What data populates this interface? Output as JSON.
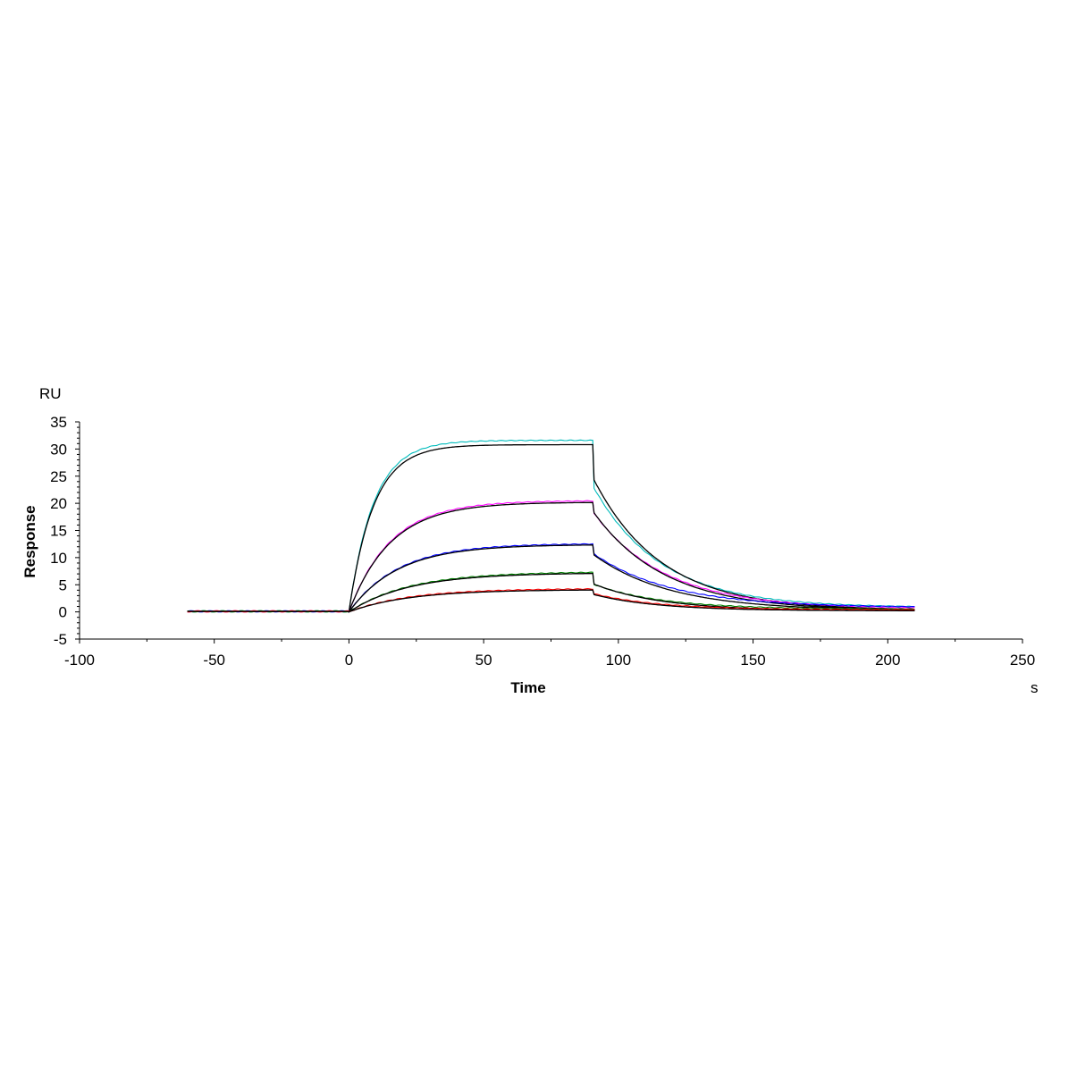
{
  "chart_data": {
    "type": "line",
    "title": "",
    "xlabel": "Time",
    "ylabel": "Response",
    "x_unit": "s",
    "y_unit": "RU",
    "xlim": [
      -100,
      250
    ],
    "ylim": [
      -5,
      35
    ],
    "x_ticks": [
      "-100",
      "-50",
      "0",
      "50",
      "100",
      "150",
      "200",
      "250"
    ],
    "y_ticks": [
      "35",
      "30",
      "25",
      "20",
      "15",
      "10",
      "5",
      "0",
      "-5"
    ],
    "x_tick_values": [
      -100,
      -50,
      0,
      50,
      100,
      150,
      200,
      250
    ],
    "y_tick_values": [
      35,
      30,
      25,
      20,
      15,
      10,
      5,
      0,
      -5
    ],
    "grid": false,
    "legend": "none",
    "association_start": 0,
    "dissociation_start": 90,
    "x_range_data": [
      -60,
      210
    ],
    "series": [
      {
        "color": "#00bcbc",
        "kind": "measured",
        "plateau": 31.6,
        "association_rate": 0.11,
        "dissociation_rate": 0.04,
        "jump": 0.25,
        "final": 0.8
      },
      {
        "color": "#000000",
        "kind": "fit",
        "plateau": 30.8,
        "association_rate": 0.11,
        "dissociation_rate": 0.04,
        "jump": 0.18,
        "final": 0.3
      },
      {
        "color": "#ff00ff",
        "kind": "measured",
        "plateau": 20.5,
        "association_rate": 0.065,
        "dissociation_rate": 0.038,
        "jump": 0.08,
        "final": 0.6
      },
      {
        "color": "#000000",
        "kind": "fit",
        "plateau": 20.2,
        "association_rate": 0.065,
        "dissociation_rate": 0.038,
        "jump": 0.06,
        "final": 0.2
      },
      {
        "color": "#0000ff",
        "kind": "measured",
        "plateau": 12.6,
        "association_rate": 0.055,
        "dissociation_rate": 0.035,
        "jump": 0.12,
        "final": 0.8
      },
      {
        "color": "#000000",
        "kind": "fit",
        "plateau": 12.4,
        "association_rate": 0.055,
        "dissociation_rate": 0.035,
        "jump": 0.12,
        "final": 0.2
      },
      {
        "color": "#008000",
        "kind": "measured",
        "plateau": 7.4,
        "association_rate": 0.045,
        "dissociation_rate": 0.04,
        "jump": 0.28,
        "final": 0.5
      },
      {
        "color": "#000000",
        "kind": "fit",
        "plateau": 7.2,
        "association_rate": 0.045,
        "dissociation_rate": 0.04,
        "jump": 0.25,
        "final": 0.2
      },
      {
        "color": "#ff0000",
        "kind": "measured",
        "plateau": 4.3,
        "association_rate": 0.045,
        "dissociation_rate": 0.042,
        "jump": 0.18,
        "final": 0.4
      },
      {
        "color": "#000000",
        "kind": "fit",
        "plateau": 4.1,
        "association_rate": 0.045,
        "dissociation_rate": 0.042,
        "jump": 0.18,
        "final": 0.2
      }
    ]
  }
}
